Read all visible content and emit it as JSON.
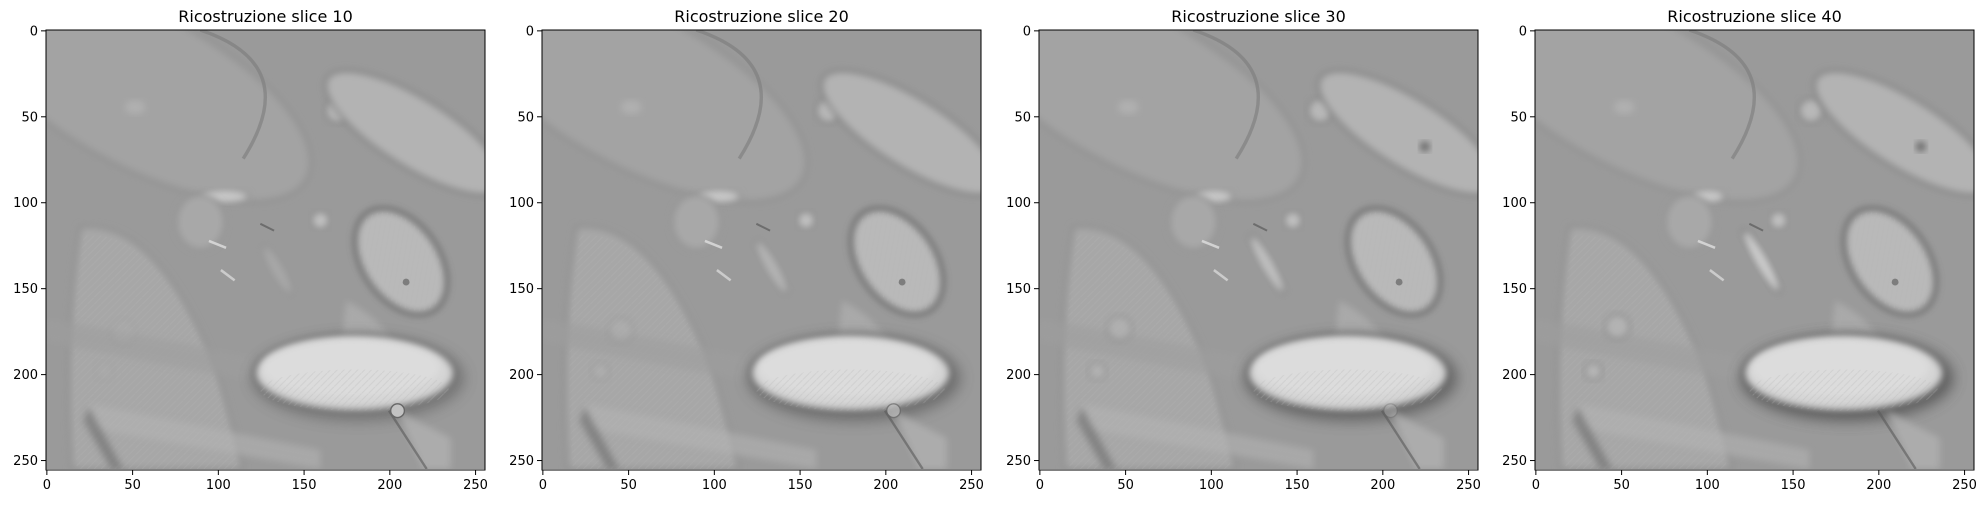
{
  "figure": {
    "colormap": "gray",
    "background_color": "#ffffff",
    "image_base_color": "#9a9a9a",
    "panels": [
      {
        "title": "Ricostruzione slice 10",
        "slice_index": 10,
        "x_ticks": [
          "0",
          "50",
          "100",
          "150",
          "200",
          "250"
        ],
        "y_ticks": [
          "0",
          "50",
          "100",
          "150",
          "200",
          "250"
        ]
      },
      {
        "title": "Ricostruzione slice 20",
        "slice_index": 20,
        "x_ticks": [
          "0",
          "50",
          "100",
          "150",
          "200",
          "250"
        ],
        "y_ticks": [
          "0",
          "50",
          "100",
          "150",
          "200",
          "250"
        ]
      },
      {
        "title": "Ricostruzione slice 30",
        "slice_index": 30,
        "x_ticks": [
          "0",
          "50",
          "100",
          "150",
          "200",
          "250"
        ],
        "y_ticks": [
          "0",
          "50",
          "100",
          "150",
          "200",
          "250"
        ]
      },
      {
        "title": "Ricostruzione slice 40",
        "slice_index": 40,
        "x_ticks": [
          "0",
          "50",
          "100",
          "150",
          "200",
          "250"
        ],
        "y_ticks": [
          "0",
          "50",
          "100",
          "150",
          "200",
          "250"
        ]
      }
    ]
  }
}
